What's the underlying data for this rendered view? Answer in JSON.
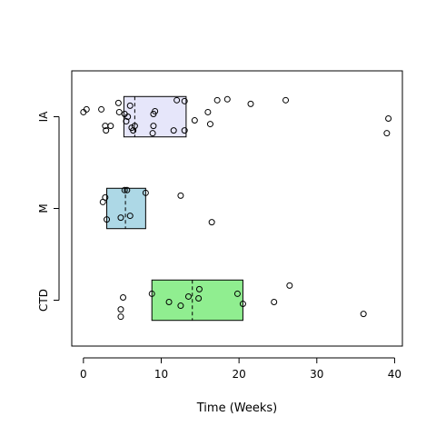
{
  "chart_data": {
    "type": "boxplot-strip",
    "orientation": "horizontal",
    "xlabel": "Time (Weeks)",
    "ylabel": "",
    "xlim": [
      -1.5,
      41
    ],
    "xticks": [
      0,
      10,
      20,
      30,
      40
    ],
    "grid": false,
    "groups": [
      {
        "name": "IA",
        "color": "#e6e6fa",
        "box": {
          "q1": 5.2,
          "median": 6.6,
          "q3": 13.2
        },
        "points": [
          {
            "x": 0.0,
            "j": 0.05
          },
          {
            "x": 0.4,
            "j": 0.08
          },
          {
            "x": 2.3,
            "j": 0.08
          },
          {
            "x": 2.8,
            "j": -0.1
          },
          {
            "x": 2.9,
            "j": -0.15
          },
          {
            "x": 3.5,
            "j": -0.1
          },
          {
            "x": 4.5,
            "j": 0.15
          },
          {
            "x": 4.6,
            "j": 0.05
          },
          {
            "x": 5.3,
            "j": 0.03
          },
          {
            "x": 5.5,
            "j": -0.05
          },
          {
            "x": 5.7,
            "j": 0.0
          },
          {
            "x": 6.0,
            "j": 0.12
          },
          {
            "x": 6.2,
            "j": -0.12
          },
          {
            "x": 6.4,
            "j": -0.15
          },
          {
            "x": 6.6,
            "j": -0.1
          },
          {
            "x": 9.0,
            "j": 0.03
          },
          {
            "x": 9.2,
            "j": 0.06
          },
          {
            "x": 9.0,
            "j": -0.1
          },
          {
            "x": 8.9,
            "j": -0.18
          },
          {
            "x": 11.6,
            "j": -0.15
          },
          {
            "x": 12.0,
            "j": 0.18
          },
          {
            "x": 13.0,
            "j": 0.17
          },
          {
            "x": 13.0,
            "j": -0.15
          },
          {
            "x": 14.3,
            "j": -0.04
          },
          {
            "x": 16.0,
            "j": 0.05
          },
          {
            "x": 16.3,
            "j": -0.08
          },
          {
            "x": 17.2,
            "j": 0.18
          },
          {
            "x": 18.5,
            "j": 0.19
          },
          {
            "x": 21.5,
            "j": 0.14
          },
          {
            "x": 26.0,
            "j": 0.18
          },
          {
            "x": 39.2,
            "j": -0.02
          },
          {
            "x": 39.0,
            "j": -0.18
          }
        ]
      },
      {
        "name": "M",
        "color": "#add8e6",
        "box": {
          "q1": 3.0,
          "median": 5.4,
          "q3": 8.0
        },
        "points": [
          {
            "x": 2.5,
            "j": 0.07
          },
          {
            "x": 2.8,
            "j": 0.12
          },
          {
            "x": 3.0,
            "j": -0.12
          },
          {
            "x": 4.8,
            "j": -0.1
          },
          {
            "x": 5.3,
            "j": 0.2
          },
          {
            "x": 5.6,
            "j": 0.2
          },
          {
            "x": 6.0,
            "j": -0.08
          },
          {
            "x": 8.0,
            "j": 0.17
          },
          {
            "x": 12.5,
            "j": 0.14
          },
          {
            "x": 16.5,
            "j": -0.15
          }
        ]
      },
      {
        "name": "CTD",
        "color": "#90ee90",
        "box": {
          "q1": 8.8,
          "median": 14.0,
          "q3": 20.5
        },
        "points": [
          {
            "x": 4.8,
            "j": -0.1
          },
          {
            "x": 4.8,
            "j": -0.18
          },
          {
            "x": 5.1,
            "j": 0.03
          },
          {
            "x": 8.8,
            "j": 0.07
          },
          {
            "x": 11.0,
            "j": -0.02
          },
          {
            "x": 12.5,
            "j": -0.06
          },
          {
            "x": 13.5,
            "j": 0.04
          },
          {
            "x": 14.8,
            "j": 0.02
          },
          {
            "x": 14.9,
            "j": 0.12
          },
          {
            "x": 19.8,
            "j": 0.07
          },
          {
            "x": 20.5,
            "j": -0.04
          },
          {
            "x": 24.5,
            "j": -0.02
          },
          {
            "x": 26.5,
            "j": 0.16
          },
          {
            "x": 36.0,
            "j": -0.15
          }
        ]
      }
    ]
  }
}
